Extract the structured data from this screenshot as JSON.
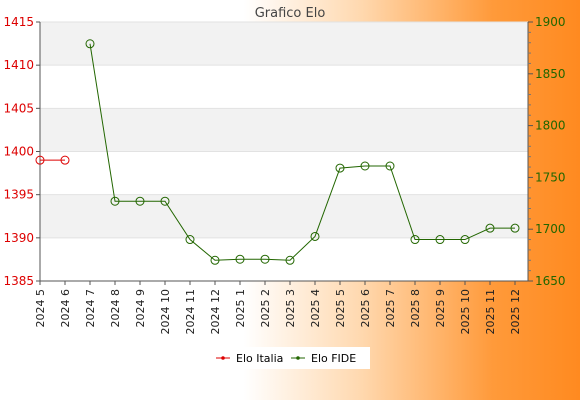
{
  "chart_data": {
    "type": "line",
    "title": "Grafico Elo",
    "categories": [
      "2024 5",
      "2024 6",
      "2024 7",
      "2024 8",
      "2024 9",
      "2024 10",
      "2024 11",
      "2024 12",
      "2025 1",
      "2025 2",
      "2025 3",
      "2025 4",
      "2025 5",
      "2025 6",
      "2025 7",
      "2025 8",
      "2025 9",
      "2025 10",
      "2025 11",
      "2025 12"
    ],
    "y_left": {
      "ylim": [
        1385,
        1415
      ],
      "ticks": [
        1385,
        1390,
        1395,
        1400,
        1405,
        1410,
        1415
      ],
      "color": "#dd0000"
    },
    "y_right": {
      "ylim": [
        1650,
        1900
      ],
      "ticks": [
        1650,
        1700,
        1750,
        1800,
        1850,
        1900
      ],
      "color": "#226600"
    },
    "series": [
      {
        "name": "Elo Italia",
        "axis": "left",
        "color": "#dd0000",
        "values": [
          1399,
          1399,
          null,
          null,
          null,
          null,
          null,
          null,
          null,
          null,
          null,
          null,
          null,
          null,
          null,
          null,
          null,
          null,
          null,
          null
        ]
      },
      {
        "name": "Elo FIDE",
        "axis": "right",
        "color": "#226600",
        "values": [
          null,
          null,
          1879,
          1727,
          1727,
          1727,
          1690,
          1670,
          1671,
          1671,
          1670,
          1693,
          1759,
          1761,
          1761,
          1690,
          1690,
          1690,
          1701,
          1701
        ]
      }
    ],
    "grid": true,
    "legend": "bottom"
  }
}
